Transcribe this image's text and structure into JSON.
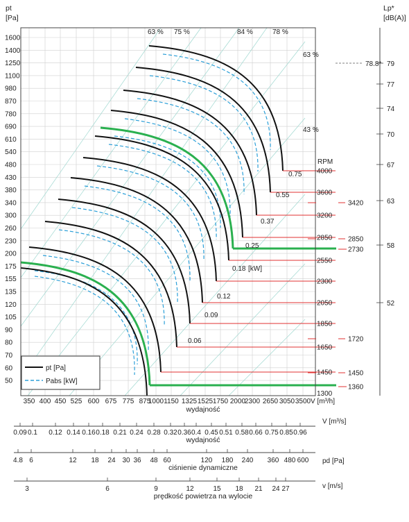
{
  "chart_data": {
    "type": "line",
    "y_axis": {
      "title_line1": "pt",
      "title_line2": "[Pa]",
      "ticks": [
        "1600",
        "1400",
        "1250",
        "1100",
        "980",
        "870",
        "780",
        "690",
        "610",
        "540",
        "480",
        "430",
        "380",
        "340",
        "300",
        "260",
        "230",
        "200",
        "175",
        "155",
        "135",
        "120",
        "105",
        "90",
        "80",
        "70",
        "60",
        "50"
      ],
      "scale": "log"
    },
    "right_axis": {
      "title_line1": "Lp*",
      "title_line2": "[dB(A)]",
      "ticks": [
        "79",
        "77",
        "74",
        "70",
        "67",
        "63",
        "58",
        "52"
      ],
      "marker_value": "78.8*"
    },
    "x_axis": {
      "ticks": [
        "350",
        "400",
        "450",
        "525",
        "600",
        "675",
        "775",
        "875",
        "1000",
        "1150",
        "1325",
        "1525",
        "1750",
        "2000",
        "2300",
        "2650",
        "3050",
        "3500"
      ],
      "unit": "V [m³/h]",
      "label": "wydajność",
      "scale": "log"
    },
    "efficiency_labels": [
      "63 %",
      "75 %",
      "84 %",
      "78 %",
      "63 %",
      "43 %"
    ],
    "rpm_title": "RPM",
    "rpm_values": [
      "4000",
      "3600",
      "3200",
      "2850",
      "2550",
      "2300",
      "2050",
      "1850",
      "1650",
      "1450",
      "1300"
    ],
    "rpm_extra": [
      "3420",
      "2850",
      "2730",
      "1720",
      "1450",
      "1360"
    ],
    "power_labels": [
      "0.75",
      "0.55",
      "0.37",
      "0.25",
      "0.18",
      "[kW]",
      "0.12",
      "0.09",
      "0.06"
    ],
    "curve_color": "#111111",
    "highlight_color": "#2ab04f",
    "pabs_color": "#2b9fd8",
    "guide_color": "#e03030",
    "legend": {
      "pt": "pt [Pa]",
      "pabs": "Pabs [kW]"
    },
    "scales": [
      {
        "name": "flow-m3s",
        "unit": "V  [m³/s]",
        "label": "wydajność",
        "ticks": [
          "0.09",
          "0.1",
          "0.12",
          "0.14",
          "0.16",
          "0.18",
          "0.21",
          "0.24",
          "0.28",
          "0.32",
          "0.36",
          "0.4",
          "0.45",
          "0.51",
          "0.58",
          "0.66",
          "0.75",
          "0.85",
          "0.96"
        ]
      },
      {
        "name": "dynamic-pressure",
        "unit": "pd  [Pa]",
        "label": "ciśnienie dynamiczne",
        "ticks": [
          "4.8",
          "6",
          "12",
          "18",
          "24",
          "30",
          "36",
          "48",
          "60",
          "120",
          "180",
          "240",
          "360",
          "480",
          "600"
        ]
      },
      {
        "name": "outlet-velocity",
        "unit": "v  [m/s]",
        "label": "prędkość powietrza na wylocie",
        "ticks": [
          "3",
          "6",
          "9",
          "12",
          "15",
          "18",
          "21",
          "24",
          "27"
        ]
      }
    ]
  }
}
